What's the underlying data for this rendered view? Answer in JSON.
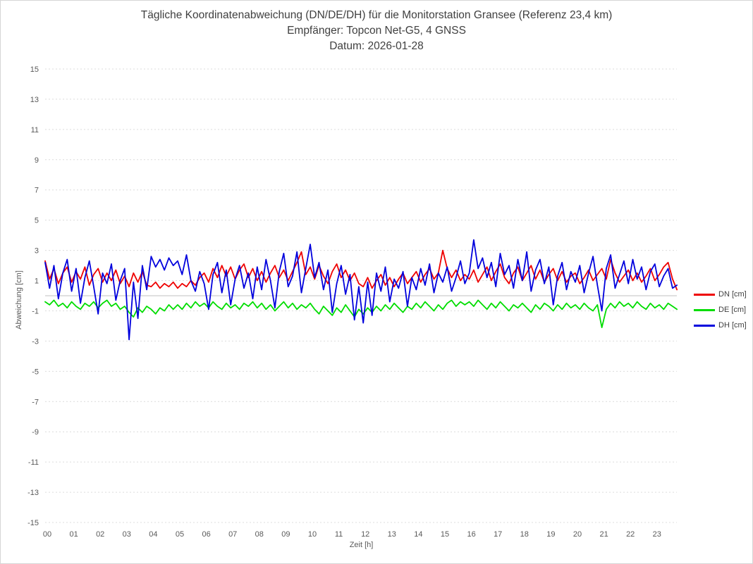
{
  "window": {
    "background": "#ffffff",
    "border_color": "#d6d6d6"
  },
  "chart_data": {
    "type": "line",
    "title": "Tägliche Koordinatenabweichung (DN/DE/DH) für die Monitorstation Gransee (Referenz 23,4 km)",
    "subtitle": "Empfänger: Topcon Net-G5, 4 GNSS",
    "date_line": "Datum: 2026-01-28",
    "xlabel": "Zeit [h]",
    "ylabel": "Abweichung [cm]",
    "xlim": [
      0,
      24
    ],
    "ylim": [
      -15,
      15
    ],
    "x_tick_labels": [
      "00",
      "01",
      "02",
      "03",
      "04",
      "05",
      "06",
      "07",
      "08",
      "09",
      "10",
      "11",
      "12",
      "13",
      "14",
      "15",
      "16",
      "17",
      "18",
      "19",
      "20",
      "21",
      "22",
      "23"
    ],
    "y_ticks": [
      15,
      13,
      11,
      9,
      7,
      5,
      3,
      1,
      -1,
      -3,
      -5,
      -7,
      -9,
      -11,
      -13,
      -15
    ],
    "grid": {
      "style": "dotted",
      "color": "#dcdcdc",
      "zero_line_style": "solid",
      "zero_line_color": "#c0c0c0"
    },
    "legend_position": "right",
    "x_step_hours": 0.1666667,
    "series": [
      {
        "name": "DN [cm]",
        "color": "#ee0000",
        "values": [
          2.3,
          1.1,
          1.8,
          0.8,
          1.5,
          1.9,
          0.9,
          1.6,
          1.1,
          1.9,
          0.7,
          1.4,
          1.8,
          0.9,
          1.5,
          1.0,
          1.7,
          0.8,
          1.3,
          0.6,
          1.5,
          0.9,
          1.6,
          0.7,
          0.6,
          0.9,
          0.5,
          0.8,
          0.6,
          0.9,
          0.5,
          0.8,
          0.6,
          1.0,
          0.7,
          1.2,
          1.5,
          0.9,
          1.8,
          1.2,
          2.0,
          1.3,
          1.9,
          1.1,
          1.7,
          2.1,
          1.2,
          1.8,
          1.0,
          1.6,
          0.9,
          1.5,
          2.0,
          1.2,
          1.7,
          1.0,
          1.6,
          2.2,
          2.9,
          1.4,
          1.9,
          1.1,
          2.0,
          1.3,
          0.8,
          1.6,
          2.1,
          1.2,
          1.7,
          1.0,
          1.5,
          0.8,
          0.6,
          1.2,
          0.5,
          1.0,
          1.4,
          0.7,
          1.2,
          0.6,
          1.1,
          1.5,
          0.8,
          1.2,
          1.6,
          0.9,
          1.4,
          1.8,
          1.1,
          1.5,
          3.0,
          1.8,
          1.2,
          1.7,
          1.0,
          1.4,
          1.1,
          1.7,
          0.9,
          1.4,
          1.9,
          1.0,
          1.6,
          2.1,
          1.2,
          0.8,
          1.5,
          1.9,
          1.0,
          1.5,
          2.0,
          1.1,
          1.7,
          0.9,
          1.4,
          1.8,
          1.0,
          1.6,
          0.9,
          1.3,
          1.5,
          0.8,
          1.2,
          1.7,
          1.0,
          1.4,
          1.8,
          1.1,
          2.4,
          1.5,
          0.9,
          1.3,
          1.7,
          1.0,
          1.5,
          0.9,
          1.3,
          1.8,
          1.0,
          1.4,
          1.9,
          2.2,
          1.1,
          0.4
        ]
      },
      {
        "name": "DE [cm]",
        "color": "#00dd00",
        "values": [
          -0.4,
          -0.6,
          -0.3,
          -0.7,
          -0.5,
          -0.8,
          -0.4,
          -0.7,
          -0.9,
          -0.5,
          -0.7,
          -0.4,
          -0.8,
          -0.5,
          -0.3,
          -0.7,
          -0.5,
          -0.9,
          -0.7,
          -1.1,
          -1.4,
          -0.8,
          -1.1,
          -0.7,
          -0.9,
          -1.2,
          -0.8,
          -1.0,
          -0.6,
          -0.9,
          -0.6,
          -0.9,
          -0.5,
          -0.8,
          -0.4,
          -0.7,
          -0.5,
          -0.8,
          -0.4,
          -0.7,
          -0.9,
          -0.5,
          -0.8,
          -0.6,
          -0.9,
          -0.5,
          -0.7,
          -0.4,
          -0.8,
          -0.5,
          -0.9,
          -0.6,
          -1.0,
          -0.7,
          -0.4,
          -0.8,
          -0.5,
          -0.9,
          -0.6,
          -0.8,
          -0.5,
          -0.9,
          -1.2,
          -0.7,
          -1.0,
          -1.3,
          -0.8,
          -1.1,
          -0.6,
          -1.0,
          -1.4,
          -0.9,
          -1.2,
          -0.8,
          -1.1,
          -0.7,
          -1.0,
          -0.6,
          -0.9,
          -0.5,
          -0.8,
          -1.1,
          -0.7,
          -0.9,
          -0.5,
          -0.8,
          -0.4,
          -0.7,
          -1.0,
          -0.6,
          -0.9,
          -0.5,
          -0.3,
          -0.7,
          -0.4,
          -0.6,
          -0.4,
          -0.7,
          -0.3,
          -0.6,
          -0.9,
          -0.5,
          -0.8,
          -0.4,
          -0.7,
          -1.0,
          -0.6,
          -0.8,
          -0.5,
          -0.8,
          -1.1,
          -0.6,
          -0.9,
          -0.5,
          -0.7,
          -1.0,
          -0.6,
          -0.9,
          -0.5,
          -0.8,
          -0.6,
          -0.9,
          -0.5,
          -0.8,
          -1.0,
          -0.6,
          -2.1,
          -0.9,
          -0.5,
          -0.8,
          -0.4,
          -0.7,
          -0.5,
          -0.8,
          -0.4,
          -0.7,
          -0.9,
          -0.5,
          -0.8,
          -0.6,
          -0.9,
          -0.5,
          -0.7,
          -0.9
        ]
      },
      {
        "name": "DH [cm]",
        "color": "#0000dd",
        "values": [
          2.2,
          0.5,
          2.0,
          -0.2,
          1.5,
          2.4,
          0.3,
          1.8,
          -0.5,
          1.2,
          2.3,
          0.6,
          -1.2,
          1.5,
          0.8,
          2.1,
          -0.3,
          1.0,
          1.8,
          -2.9,
          0.9,
          -1.5,
          2.0,
          0.4,
          2.6,
          1.9,
          2.4,
          1.7,
          2.5,
          2.0,
          2.3,
          1.4,
          2.7,
          1.0,
          0.3,
          1.6,
          0.8,
          -0.9,
          1.4,
          2.2,
          0.2,
          1.7,
          -0.6,
          1.1,
          2.0,
          0.5,
          1.5,
          -0.2,
          1.9,
          0.4,
          2.4,
          1.0,
          -0.8,
          1.6,
          2.8,
          0.6,
          1.3,
          2.9,
          0.2,
          1.8,
          3.4,
          1.2,
          2.2,
          0.4,
          1.7,
          -1.1,
          0.8,
          2.0,
          0.1,
          1.4,
          -1.6,
          0.6,
          -1.8,
          0.9,
          -1.3,
          1.5,
          0.3,
          1.9,
          -0.4,
          1.1,
          0.5,
          1.6,
          -0.7,
          1.2,
          0.4,
          1.8,
          0.7,
          2.1,
          0.2,
          1.5,
          0.9,
          1.9,
          0.3,
          1.2,
          2.3,
          0.8,
          1.5,
          3.7,
          1.8,
          2.5,
          1.2,
          2.2,
          0.6,
          2.8,
          1.4,
          2.0,
          0.5,
          2.4,
          1.0,
          2.9,
          0.3,
          1.7,
          2.4,
          0.8,
          1.9,
          -0.6,
          1.3,
          2.2,
          0.4,
          1.6,
          0.9,
          2.0,
          0.2,
          1.5,
          2.6,
          0.7,
          -1.0,
          1.8,
          2.7,
          0.5,
          1.4,
          2.3,
          0.8,
          2.4,
          1.1,
          1.9,
          0.4,
          1.6,
          2.1,
          0.6,
          1.3,
          1.8,
          0.5,
          0.7
        ]
      }
    ]
  }
}
